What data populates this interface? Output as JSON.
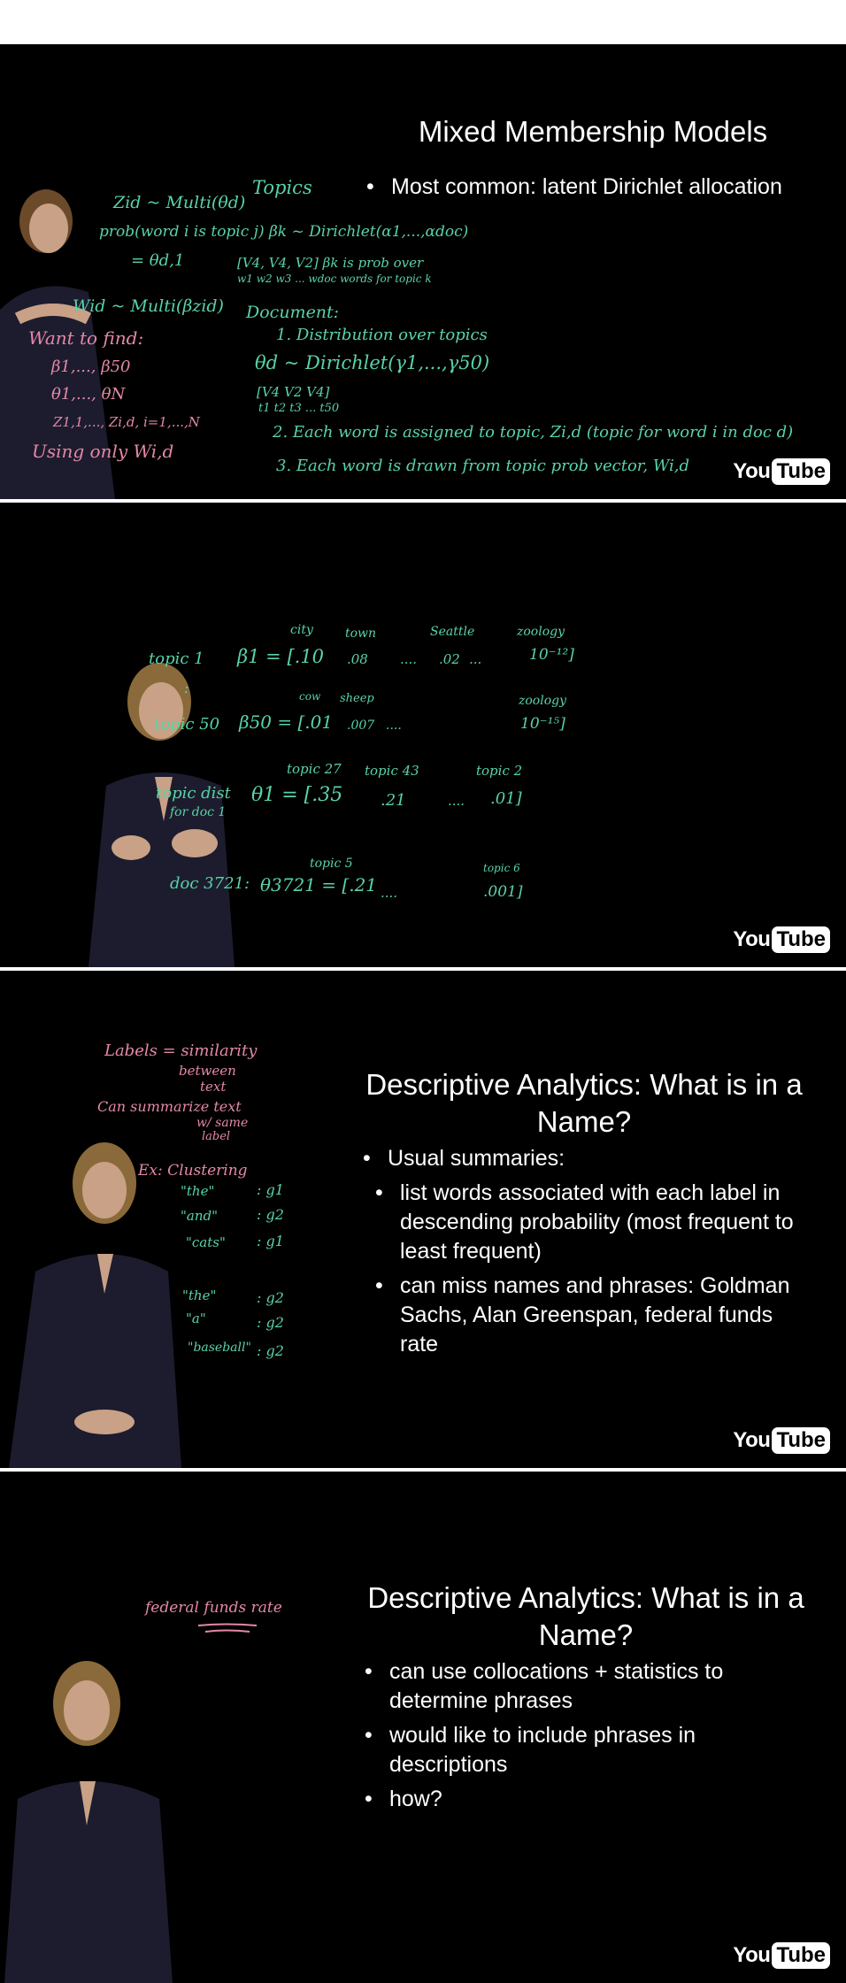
{
  "logo": {
    "you": "You",
    "tube": "Tube"
  },
  "frame1": {
    "title": "Mixed Membership Models",
    "bullets": [
      "Most common: latent Dirichlet allocation"
    ],
    "board": {
      "pink": [
        "Want to find:",
        "β1,..., β50",
        "θ1,..., θN",
        "Z1,1,..., Zi,d, i=1,...,N",
        "Using only Wi,d"
      ],
      "green": [
        "Zid ~ Multi(θd)",
        "Topics",
        "prob(word i is topic j) βk ~ Dirichlet(α1,...,αdoc)",
        "= θd,1",
        "[V4, V4, V2]   βk is prob over",
        "w1 w2 w3 ... wdoc words for topic k",
        "Wid ~ Multi(βzid)",
        "Document:",
        "1. Distribution over topics",
        "θd ~ Dirichlet(γ1,...,γ50)",
        "[V4 V2 V4]",
        "t1 t2 t3 ... t50",
        "2. Each word is assigned to topic, Zi,d (topic for word i in doc d)",
        "3. Each word is drawn from topic prob vector, Wi,d"
      ]
    }
  },
  "frame2": {
    "board": {
      "green": [
        "city",
        "town",
        "Seattle",
        "zoology",
        "topic 1",
        "β1 = [.10",
        ".08",
        "....",
        ".02",
        "...",
        "10⁻¹²]",
        ":",
        "cow",
        "sheep",
        "zoology",
        "topic 50",
        "β50 = [.01",
        ".007",
        "....",
        "10⁻¹⁵]",
        "topic 27",
        "topic 43",
        "topic 2",
        "topic dist",
        "for doc 1",
        "θ1 = [.35",
        ".21",
        "....",
        ".01]",
        "topic 5",
        "topic 6",
        "doc 3721:",
        "θ3721 = [.21",
        "....",
        ".001]"
      ]
    }
  },
  "frame3": {
    "title": "Descriptive Analytics: What is in a Name?",
    "bullets": [
      {
        "text": "Usual summaries:",
        "level": 0
      },
      {
        "text": "list words associated with each label in descending probability (most frequent to least frequent)",
        "level": 1
      },
      {
        "text": "can miss names and phrases: Goldman Sachs, Alan Greenspan, federal funds rate",
        "level": 1
      }
    ],
    "board": {
      "pink": [
        "Labels = similarity",
        "between",
        "text",
        "Can summarize text",
        "w/ same",
        "label"
      ],
      "green": [
        "Ex: Clustering",
        "\"the\"",
        ": g1",
        "\"and\"",
        ": g2",
        "\"cats\"",
        ": g1",
        "\"the\"",
        ": g2",
        "\"a\"",
        ": g2",
        "\"baseball\"",
        ": g2"
      ]
    }
  },
  "frame4": {
    "title": "Descriptive Analytics: What is in a Name?",
    "bullets": [
      "can use collocations + statistics to determine phrases",
      "would like to include phrases in descriptions",
      "how?"
    ],
    "board": {
      "pink": [
        "federal funds rate"
      ]
    }
  }
}
